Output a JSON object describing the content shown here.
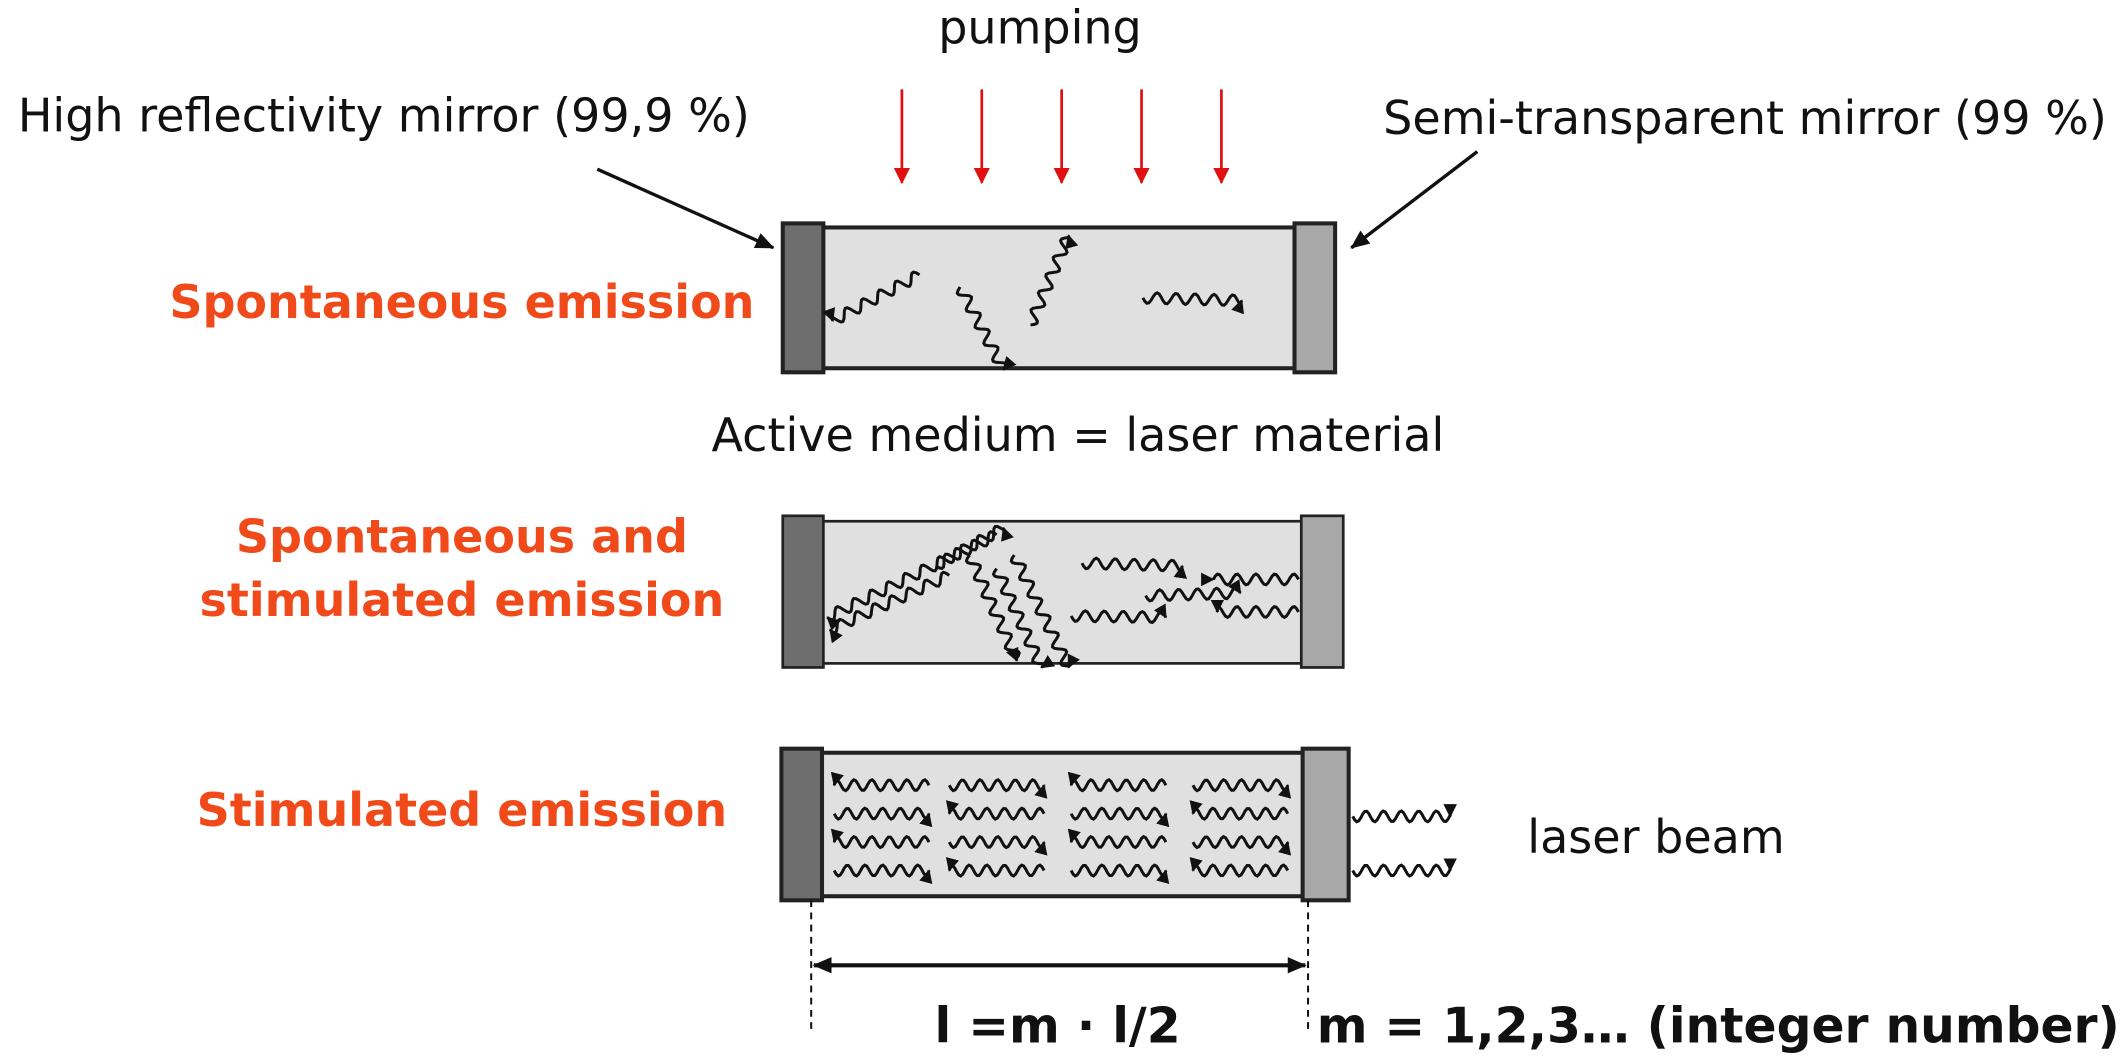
{
  "labels": {
    "pumping": "pumping",
    "left_mirror": "High reflectivity mirror (99,9 %)",
    "right_mirror": "Semi-transparent mirror (99 %)",
    "medium": "Active medium = laser material",
    "beam": "laser beam",
    "length": "l =m · l/2",
    "integer": "m = 1,2,3… (integer number)"
  },
  "stages": [
    {
      "lines": [
        "Spontaneous emission"
      ]
    },
    {
      "lines": [
        "Spontaneous and",
        "stimulated emission"
      ]
    },
    {
      "lines": [
        "Stimulated emission"
      ]
    }
  ]
}
